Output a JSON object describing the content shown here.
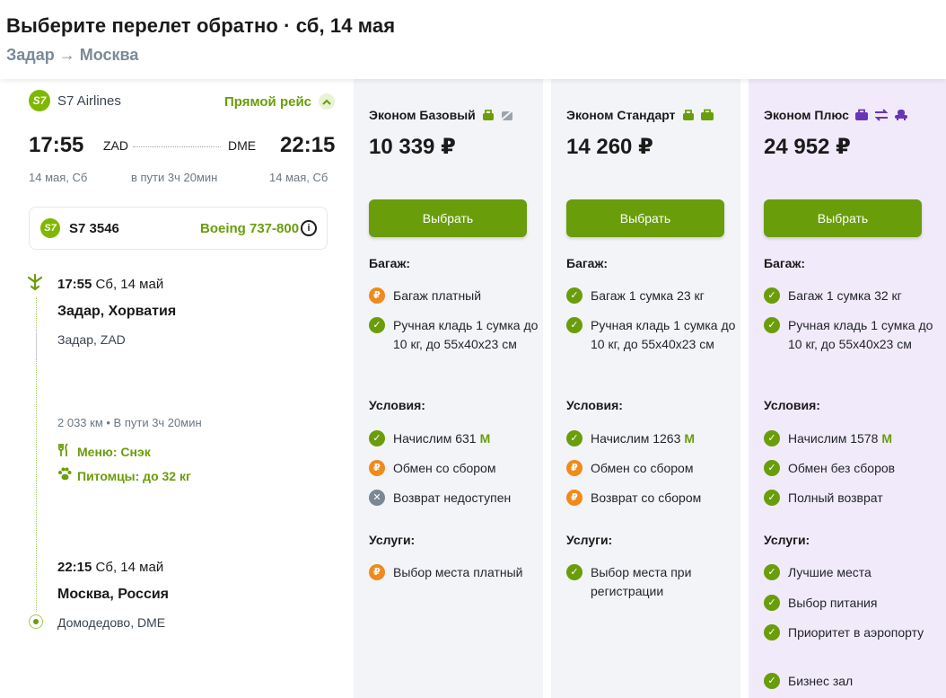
{
  "header": {
    "title": "Выберите перелет обратно · сб, 14 мая",
    "route": "Задар → Москва"
  },
  "flight": {
    "logo_text": "S7",
    "airline": "S7 Airlines",
    "direct_label": "Прямой рейс",
    "dep_time": "17:55",
    "dep_code": "ZAD",
    "arr_code": "DME",
    "arr_time": "22:15",
    "dep_date": "14 мая, Сб",
    "duration": "в пути 3ч 20мин",
    "arr_date": "14 мая, Сб",
    "flight_number": "S7 3546",
    "aircraft": "Boeing 737-800",
    "info_glyph": "i",
    "timeline": {
      "dep_time": "17:55",
      "dep_day": "Сб, 14 май",
      "dep_city": "Задар, Хорватия",
      "dep_airport": "Задар, ZAD",
      "meta": "2 033 км • В пути 3ч 20мин",
      "menu": "Меню: Снэк",
      "pets": "Питомцы: до 32 кг",
      "arr_time": "22:15",
      "arr_day": "Сб, 14 май",
      "arr_city": "Москва, Россия",
      "arr_airport": "Домодедово, DME"
    }
  },
  "labels": {
    "baggage": "Багаж:",
    "conditions": "Условия:",
    "services": "Услуги:",
    "miles_symbol": "M"
  },
  "tariffs": [
    {
      "name": "Эконом Базовый",
      "price": "10 339 ₽",
      "button": "Выбрать",
      "baggage": [
        {
          "status": "paid",
          "text": "Багаж платный"
        },
        {
          "status": "ok",
          "text": "Ручная кладь 1 сумка до 10 кг, до 55x40x23 см"
        }
      ],
      "conditions": [
        {
          "status": "ok",
          "text": "Начислим 631"
        },
        {
          "status": "paid",
          "text": "Обмен со сбором"
        },
        {
          "status": "no",
          "text": "Возврат недоступен"
        }
      ],
      "services": [
        {
          "status": "paid",
          "text": "Выбор места платный"
        }
      ]
    },
    {
      "name": "Эконом Стандарт",
      "price": "14 260 ₽",
      "button": "Выбрать",
      "baggage": [
        {
          "status": "ok",
          "text": "Багаж 1 сумка 23 кг"
        },
        {
          "status": "ok",
          "text": "Ручная кладь 1 сумка до 10 кг, до 55x40x23 см"
        }
      ],
      "conditions": [
        {
          "status": "ok",
          "text": "Начислим 1263"
        },
        {
          "status": "paid",
          "text": "Обмен со сбором"
        },
        {
          "status": "paid",
          "text": "Возврат со сбором"
        }
      ],
      "services": [
        {
          "status": "ok",
          "text": "Выбор места при регистрации"
        }
      ]
    },
    {
      "name": "Эконом Плюс",
      "price": "24 952 ₽",
      "button": "Выбрать",
      "baggage": [
        {
          "status": "ok",
          "text": "Багаж 1 сумка 32 кг"
        },
        {
          "status": "ok",
          "text": "Ручная кладь 1 сумка до 10 кг, до 55x40x23 см"
        }
      ],
      "conditions": [
        {
          "status": "ok",
          "text": "Начислим 1578"
        },
        {
          "status": "ok",
          "text": "Обмен без сборов"
        },
        {
          "status": "ok",
          "text": "Полный возврат"
        }
      ],
      "services": [
        {
          "status": "ok",
          "text": "Лучшие места"
        },
        {
          "status": "ok",
          "text": "Выбор питания"
        },
        {
          "status": "ok",
          "text": "Приоритет в аэропорту"
        },
        {
          "status": "ok",
          "text": "Бизнес зал"
        }
      ]
    }
  ],
  "colors": {
    "brand_green": "#6a9d0a",
    "paid_orange": "#f08a1c",
    "unavailable_gray": "#7b8794",
    "plus_accent": "#6a35b5"
  }
}
